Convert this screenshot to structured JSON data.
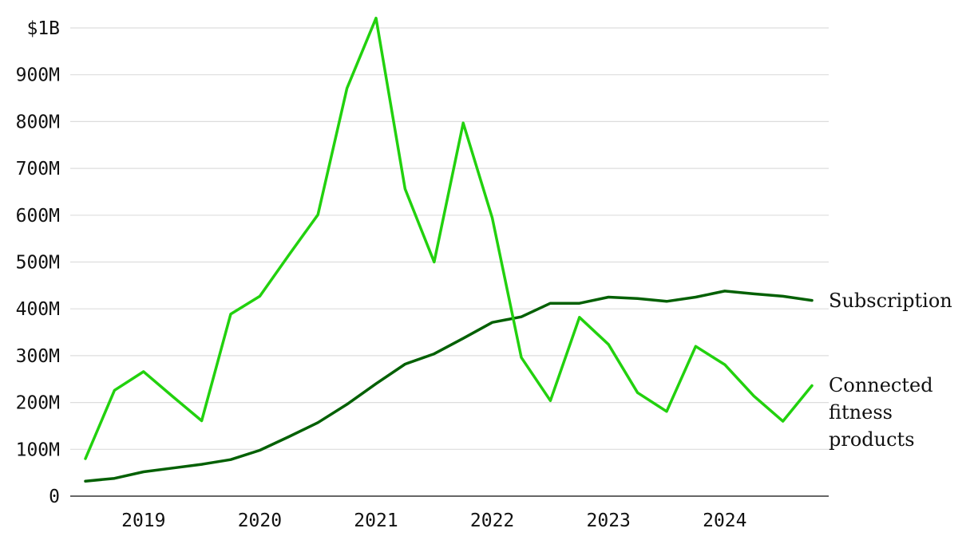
{
  "chart_data": {
    "type": "line",
    "title": "",
    "xlabel": "",
    "ylabel": "",
    "ylim": [
      0,
      1000000000
    ],
    "grid": "horizontal",
    "y_ticks": [
      {
        "value": 0,
        "label": "0"
      },
      {
        "value": 100000000,
        "label": "100M"
      },
      {
        "value": 200000000,
        "label": "200M"
      },
      {
        "value": 300000000,
        "label": "300M"
      },
      {
        "value": 400000000,
        "label": "400M"
      },
      {
        "value": 500000000,
        "label": "500M"
      },
      {
        "value": 600000000,
        "label": "600M"
      },
      {
        "value": 700000000,
        "label": "700M"
      },
      {
        "value": 800000000,
        "label": "800M"
      },
      {
        "value": 900000000,
        "label": "900M"
      },
      {
        "value": 1000000000,
        "label": "$1B"
      }
    ],
    "x_ticks": [
      "2019",
      "2020",
      "2021",
      "2022",
      "2023",
      "2024"
    ],
    "x": [
      "Q3 2018",
      "Q4 2018",
      "Q1 2019",
      "Q2 2019",
      "Q3 2019",
      "Q4 2019",
      "Q1 2020",
      "Q2 2020",
      "Q3 2020",
      "Q4 2020",
      "Q1 2021",
      "Q2 2021",
      "Q3 2021",
      "Q4 2021",
      "Q1 2022",
      "Q2 2022",
      "Q3 2022",
      "Q4 2022",
      "Q1 2023",
      "Q2 2023",
      "Q3 2023",
      "Q4 2023",
      "Q1 2024",
      "Q2 2024",
      "Q3 2024",
      "Q4 2024"
    ],
    "series": [
      {
        "name": "Subscription",
        "label_lines": [
          "Subscription"
        ],
        "color": "#036003",
        "values": [
          32000000,
          38000000,
          52000000,
          60000000,
          68000000,
          78000000,
          98000000,
          127000000,
          157000000,
          196000000,
          240000000,
          282000000,
          304000000,
          337000000,
          371000000,
          383000000,
          412000000,
          412000000,
          425000000,
          422000000,
          416000000,
          425000000,
          438000000,
          432000000,
          427000000,
          418000000
        ]
      },
      {
        "name": "Connected fitness products",
        "label_lines": [
          "Connected",
          "fitness",
          "products"
        ],
        "color": "#22d10e",
        "values": [
          80000000,
          226000000,
          266000000,
          213000000,
          161000000,
          389000000,
          427000000,
          515000000,
          601000000,
          871000000,
          1021000000,
          656000000,
          500000000,
          797000000,
          594000000,
          296000000,
          204000000,
          382000000,
          324000000,
          221000000,
          181000000,
          320000000,
          281000000,
          214000000,
          160000000,
          236000000
        ]
      }
    ]
  }
}
